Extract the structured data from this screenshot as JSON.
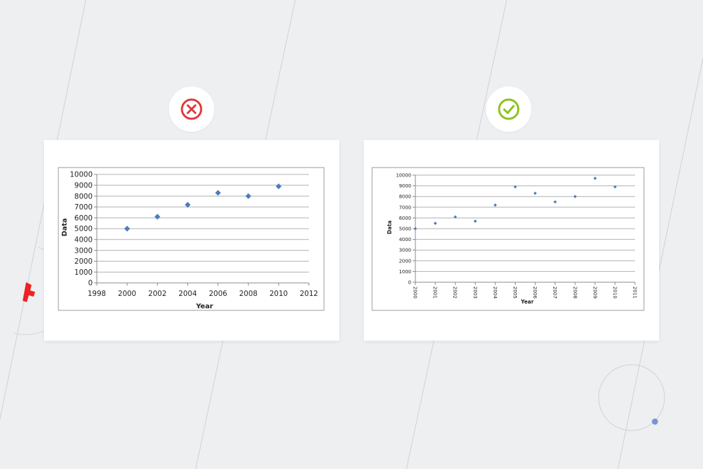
{
  "colors": {
    "background": "#eeeff1",
    "wrong": "#e0383b",
    "right": "#8cc21a",
    "marker": "#4a7ebb",
    "accent_dot": "#7a92d6"
  },
  "icons": {
    "left_badge": "x-circle-icon",
    "right_badge": "check-circle-icon"
  },
  "chart_data": [
    {
      "type": "scatter",
      "xlabel": "Year",
      "ylabel": "Data",
      "xlim": [
        1998,
        2012
      ],
      "ylim": [
        0,
        10000
      ],
      "xticks": [
        "1998",
        "2000",
        "2002",
        "2004",
        "2006",
        "2008",
        "2010",
        "2012"
      ],
      "yticks": [
        "0",
        "1000",
        "2000",
        "3000",
        "4000",
        "5000",
        "6000",
        "7000",
        "8000",
        "9000",
        "10000"
      ],
      "grid": true,
      "legend": "none",
      "x": [
        2000,
        2002,
        2004,
        2006,
        2008,
        2010
      ],
      "y": [
        5000,
        6100,
        7200,
        8300,
        8000,
        8900
      ],
      "marker": "diamond"
    },
    {
      "type": "scatter",
      "xlabel": "Year",
      "ylabel": "Data",
      "xlim": [
        2000,
        2011
      ],
      "ylim": [
        0,
        10000
      ],
      "xticks": [
        "2000",
        "2001",
        "2002",
        "2003",
        "2004",
        "2005",
        "2006",
        "2007",
        "2008",
        "2009",
        "2010",
        "2011"
      ],
      "yticks": [
        "0",
        "1000",
        "2000",
        "3000",
        "4000",
        "5000",
        "6000",
        "7000",
        "8000",
        "9000",
        "10000"
      ],
      "grid": true,
      "legend": "none",
      "x": [
        2000,
        2001,
        2002,
        2003,
        2004,
        2005,
        2006,
        2007,
        2008,
        2009,
        2010
      ],
      "y": [
        5000,
        5500,
        6100,
        5700,
        7200,
        8900,
        8300,
        7500,
        8000,
        9700,
        8900
      ],
      "marker": "small diamond"
    }
  ]
}
